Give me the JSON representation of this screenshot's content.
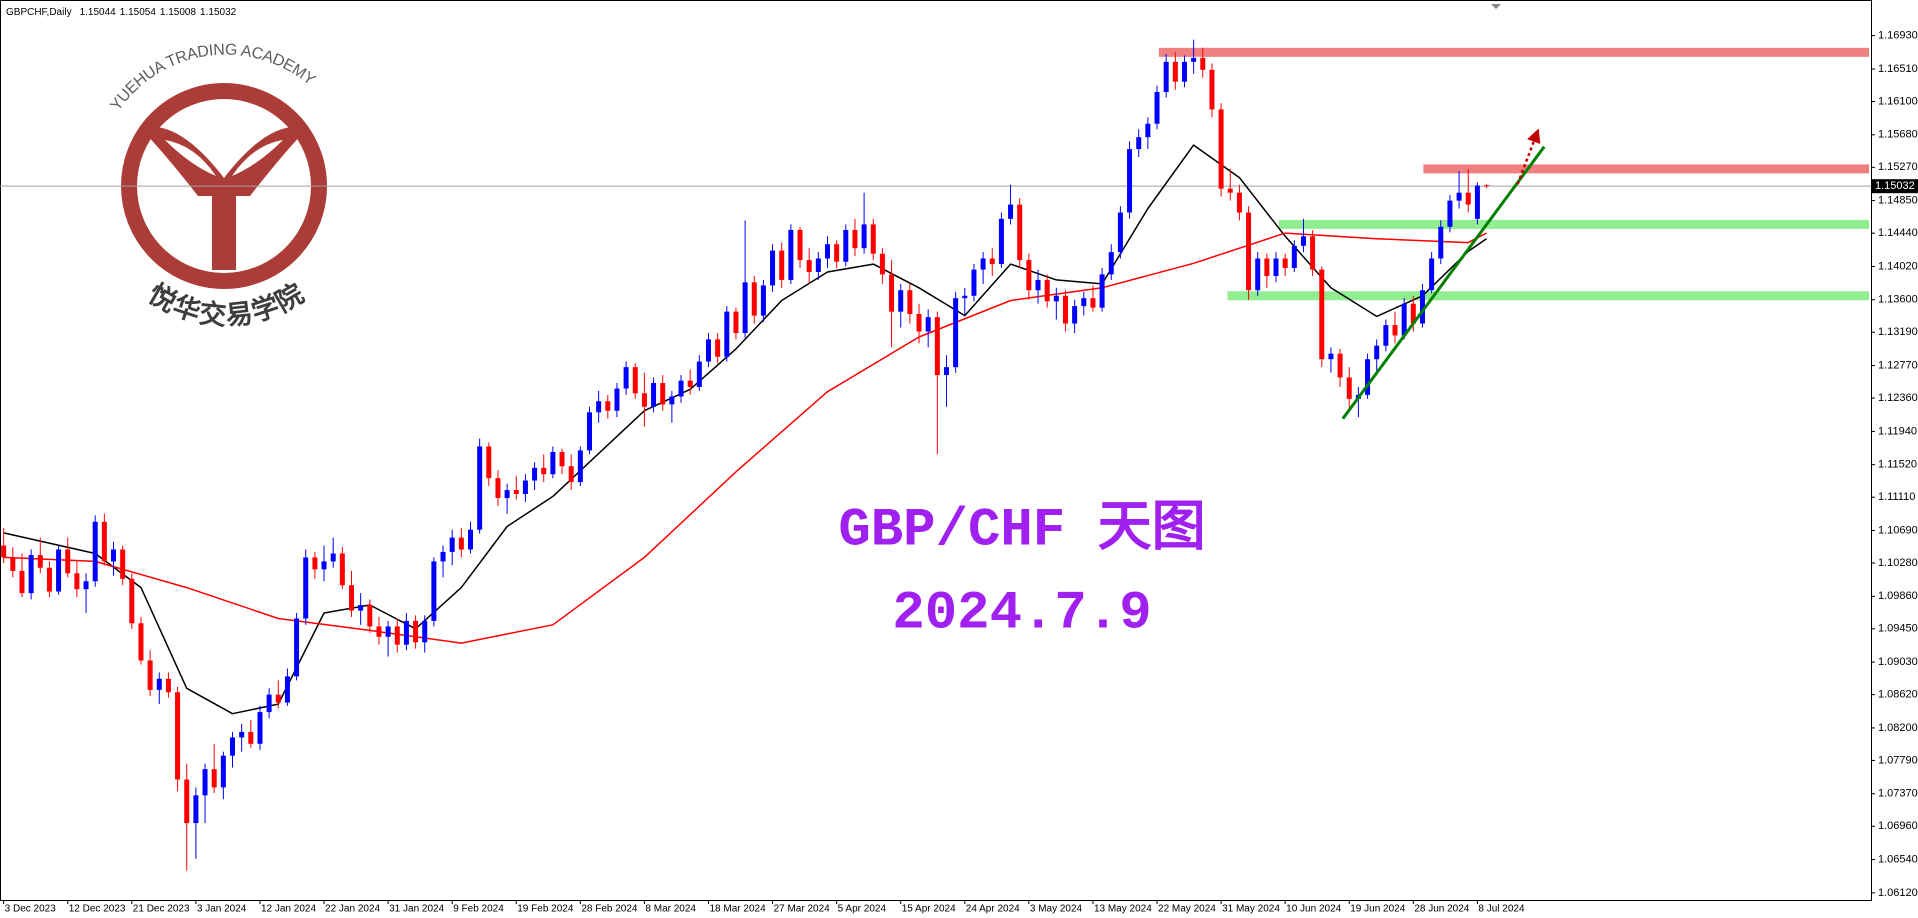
{
  "chart_data": {
    "type": "candlestick",
    "symbol": "GBPCHF,Daily",
    "title": "GBP/CHF 天图",
    "subtitle": "2024.7.9",
    "watermark": {
      "title": "YUEHUA TRADING ACADEMY",
      "subtitle": "悦华交易学院"
    },
    "up_color": "#0000ff",
    "down_color": "#ff0000",
    "xlim": [
      -0.4,
      204
    ],
    "ylim": [
      1.0603,
      1.1738
    ],
    "yticks": [
      {
        "value": 1.1693,
        "label": "1.16930"
      },
      {
        "value": 1.1651,
        "label": "1.16510"
      },
      {
        "value": 1.161,
        "label": "1.16100"
      },
      {
        "value": 1.1568,
        "label": "1.15680"
      },
      {
        "value": 1.1527,
        "label": "1.15270"
      },
      {
        "value": 1.1485,
        "label": "1.14850"
      },
      {
        "value": 1.1444,
        "label": "1.14440"
      },
      {
        "value": 1.1402,
        "label": "1.14020"
      },
      {
        "value": 1.136,
        "label": "1.13600"
      },
      {
        "value": 1.1319,
        "label": "1.13190"
      },
      {
        "value": 1.1277,
        "label": "1.12770"
      },
      {
        "value": 1.1236,
        "label": "1.12360"
      },
      {
        "value": 1.1194,
        "label": "1.11940"
      },
      {
        "value": 1.1152,
        "label": "1.11520"
      },
      {
        "value": 1.1111,
        "label": "1.11110"
      },
      {
        "value": 1.1069,
        "label": "1.10690"
      },
      {
        "value": 1.1028,
        "label": "1.10280"
      },
      {
        "value": 1.0986,
        "label": "1.09860"
      },
      {
        "value": 1.0945,
        "label": "1.09450"
      },
      {
        "value": 1.0903,
        "label": "1.09030"
      },
      {
        "value": 1.0862,
        "label": "1.08620"
      },
      {
        "value": 1.082,
        "label": "1.08200"
      },
      {
        "value": 1.0779,
        "label": "1.07790"
      },
      {
        "value": 1.0737,
        "label": "1.07370"
      },
      {
        "value": 1.0696,
        "label": "1.06960"
      },
      {
        "value": 1.0654,
        "label": "1.06540"
      },
      {
        "value": 1.0612,
        "label": "1.06120"
      }
    ],
    "xticks": [
      {
        "value": 0,
        "label": "3 Dec 2023"
      },
      {
        "value": 7,
        "label": "12 Dec 2023"
      },
      {
        "value": 14,
        "label": "21 Dec 2023"
      },
      {
        "value": 21,
        "label": "3 Jan 2024"
      },
      {
        "value": 28,
        "label": "12 Jan 2024"
      },
      {
        "value": 35,
        "label": "22 Jan 2024"
      },
      {
        "value": 42,
        "label": "31 Jan 2024"
      },
      {
        "value": 49,
        "label": "9 Feb 2024"
      },
      {
        "value": 56,
        "label": "19 Feb 2024"
      },
      {
        "value": 63,
        "label": "28 Feb 2024"
      },
      {
        "value": 70,
        "label": "8 Mar 2024"
      },
      {
        "value": 77,
        "label": "18 Mar 2024"
      },
      {
        "value": 84,
        "label": "27 Mar 2024"
      },
      {
        "value": 91,
        "label": "5 Apr 2024"
      },
      {
        "value": 98,
        "label": "15 Apr 2024"
      },
      {
        "value": 105,
        "label": "24 Apr 2024"
      },
      {
        "value": 112,
        "label": "3 May 2024"
      },
      {
        "value": 119,
        "label": "13 May 2024"
      },
      {
        "value": 126,
        "label": "22 May 2024"
      },
      {
        "value": 133,
        "label": "31 May 2024"
      },
      {
        "value": 140,
        "label": "10 Jun 2024"
      },
      {
        "value": 147,
        "label": "19 Jun 2024"
      },
      {
        "value": 154,
        "label": "28 Jun 2024"
      },
      {
        "value": 161,
        "label": "8 Jul 2024"
      }
    ],
    "candles": [
      [
        1.105,
        1.1072,
        1.1028,
        1.1035
      ],
      [
        1.1035,
        1.1048,
        1.101,
        1.1018
      ],
      [
        1.1018,
        1.104,
        1.0985,
        1.099
      ],
      [
        1.099,
        1.1045,
        1.0982,
        1.1038
      ],
      [
        1.1038,
        1.106,
        1.1015,
        1.1022
      ],
      [
        1.1022,
        1.103,
        1.0985,
        1.0992
      ],
      [
        1.0992,
        1.105,
        1.0988,
        1.1045
      ],
      [
        1.1045,
        1.106,
        1.101,
        1.1015
      ],
      [
        1.1015,
        1.103,
        1.0985,
        1.0995
      ],
      [
        1.0995,
        1.1015,
        1.0965,
        1.1005
      ],
      [
        1.1005,
        1.1088,
        1.0998,
        1.108
      ],
      [
        1.108,
        1.109,
        1.1025,
        1.103
      ],
      [
        1.103,
        1.1055,
        1.1012,
        1.1045
      ],
      [
        1.1045,
        1.105,
        1.1,
        1.1008
      ],
      [
        1.1008,
        1.1015,
        1.0945,
        1.0952
      ],
      [
        1.0952,
        1.096,
        1.09,
        1.0905
      ],
      [
        1.0905,
        1.0918,
        1.086,
        1.0868
      ],
      [
        1.0868,
        1.089,
        1.085,
        1.0882
      ],
      [
        1.0882,
        1.089,
        1.0858,
        1.0865
      ],
      [
        1.0865,
        1.0872,
        1.074,
        1.0755
      ],
      [
        1.0755,
        1.0775,
        1.064,
        1.07
      ],
      [
        1.07,
        1.0745,
        1.0655,
        1.0735
      ],
      [
        1.0735,
        1.0775,
        1.07,
        1.0768
      ],
      [
        1.0768,
        1.08,
        1.0738,
        1.0745
      ],
      [
        1.0745,
        1.079,
        1.073,
        1.0785
      ],
      [
        1.0785,
        1.0815,
        1.077,
        1.0808
      ],
      [
        1.0808,
        1.0825,
        1.079,
        1.0815
      ],
      [
        1.0815,
        1.083,
        1.0795,
        1.08
      ],
      [
        1.08,
        1.0848,
        1.0792,
        1.084
      ],
      [
        1.084,
        1.087,
        1.0832,
        1.0862
      ],
      [
        1.0862,
        1.088,
        1.0845,
        1.0852
      ],
      [
        1.0852,
        1.0895,
        1.0848,
        1.0885
      ],
      [
        1.0885,
        1.0965,
        1.088,
        1.0958
      ],
      [
        1.0958,
        1.1045,
        1.095,
        1.1035
      ],
      [
        1.1035,
        1.1042,
        1.1008,
        1.102
      ],
      [
        1.102,
        1.105,
        1.1005,
        1.103
      ],
      [
        1.103,
        1.106,
        1.1022,
        1.104
      ],
      [
        1.104,
        1.1048,
        1.0995,
        1.1
      ],
      [
        1.1,
        1.1018,
        1.096,
        1.0968
      ],
      [
        1.0968,
        1.099,
        1.095,
        1.0975
      ],
      [
        1.0975,
        1.0982,
        1.094,
        1.0948
      ],
      [
        1.0948,
        1.096,
        1.0925,
        1.0935
      ],
      [
        1.0935,
        1.0955,
        1.091,
        1.0948
      ],
      [
        1.0948,
        1.0958,
        1.0915,
        1.0925
      ],
      [
        1.0925,
        1.0965,
        1.0918,
        1.0955
      ],
      [
        1.0955,
        1.0962,
        1.092,
        1.0928
      ],
      [
        1.0928,
        1.0962,
        1.0915,
        1.0955
      ],
      [
        1.0955,
        1.1035,
        1.0948,
        1.103
      ],
      [
        1.103,
        1.105,
        1.101,
        1.1042
      ],
      [
        1.1042,
        1.107,
        1.1025,
        1.106
      ],
      [
        1.106,
        1.1072,
        1.1035,
        1.1045
      ],
      [
        1.1045,
        1.108,
        1.104,
        1.107
      ],
      [
        1.107,
        1.1185,
        1.1065,
        1.1175
      ],
      [
        1.1175,
        1.118,
        1.1125,
        1.1135
      ],
      [
        1.1135,
        1.1145,
        1.11,
        1.111
      ],
      [
        1.111,
        1.1128,
        1.109,
        1.112
      ],
      [
        1.112,
        1.1138,
        1.1108,
        1.1115
      ],
      [
        1.1115,
        1.114,
        1.1105,
        1.1132
      ],
      [
        1.1132,
        1.1155,
        1.112,
        1.1148
      ],
      [
        1.1148,
        1.1165,
        1.113,
        1.114
      ],
      [
        1.114,
        1.1175,
        1.1135,
        1.1168
      ],
      [
        1.1168,
        1.1172,
        1.114,
        1.115
      ],
      [
        1.115,
        1.1165,
        1.112,
        1.113
      ],
      [
        1.113,
        1.1175,
        1.1125,
        1.117
      ],
      [
        1.117,
        1.1225,
        1.1165,
        1.1218
      ],
      [
        1.1218,
        1.1245,
        1.1205,
        1.1232
      ],
      [
        1.1232,
        1.124,
        1.121,
        1.122
      ],
      [
        1.122,
        1.1255,
        1.1212,
        1.1248
      ],
      [
        1.1248,
        1.1282,
        1.124,
        1.1275
      ],
      [
        1.1275,
        1.128,
        1.1235,
        1.1242
      ],
      [
        1.1242,
        1.1268,
        1.12,
        1.1225
      ],
      [
        1.1225,
        1.1262,
        1.1218,
        1.1255
      ],
      [
        1.1255,
        1.1265,
        1.122,
        1.1228
      ],
      [
        1.1228,
        1.1245,
        1.1205,
        1.1238
      ],
      [
        1.1238,
        1.1265,
        1.123,
        1.1258
      ],
      [
        1.1258,
        1.1272,
        1.124,
        1.125
      ],
      [
        1.125,
        1.129,
        1.1245,
        1.1282
      ],
      [
        1.1282,
        1.1318,
        1.1275,
        1.131
      ],
      [
        1.131,
        1.1318,
        1.128,
        1.1288
      ],
      [
        1.1288,
        1.1352,
        1.1282,
        1.1345
      ],
      [
        1.1345,
        1.135,
        1.131,
        1.1318
      ],
      [
        1.1318,
        1.146,
        1.1312,
        1.1382
      ],
      [
        1.1382,
        1.139,
        1.133,
        1.134
      ],
      [
        1.134,
        1.1385,
        1.1332,
        1.1378
      ],
      [
        1.1378,
        1.143,
        1.137,
        1.1422
      ],
      [
        1.1422,
        1.1432,
        1.1375,
        1.1385
      ],
      [
        1.1385,
        1.1455,
        1.138,
        1.1448
      ],
      [
        1.1448,
        1.1452,
        1.14,
        1.141
      ],
      [
        1.141,
        1.1425,
        1.138,
        1.1395
      ],
      [
        1.1395,
        1.142,
        1.1385,
        1.1412
      ],
      [
        1.1412,
        1.144,
        1.14,
        1.143
      ],
      [
        1.143,
        1.1435,
        1.14,
        1.1408
      ],
      [
        1.1408,
        1.1455,
        1.1402,
        1.1448
      ],
      [
        1.1448,
        1.1462,
        1.1415,
        1.1425
      ],
      [
        1.1425,
        1.1495,
        1.1418,
        1.1455
      ],
      [
        1.1455,
        1.1462,
        1.141,
        1.1418
      ],
      [
        1.1418,
        1.1425,
        1.138,
        1.1392
      ],
      [
        1.1392,
        1.141,
        1.13,
        1.1345
      ],
      [
        1.1345,
        1.138,
        1.1325,
        1.1372
      ],
      [
        1.1372,
        1.138,
        1.133,
        1.1342
      ],
      [
        1.1342,
        1.1355,
        1.1305,
        1.132
      ],
      [
        1.132,
        1.1348,
        1.13,
        1.1338
      ],
      [
        1.1338,
        1.1345,
        1.1165,
        1.1265
      ],
      [
        1.1265,
        1.129,
        1.1225,
        1.1275
      ],
      [
        1.1275,
        1.137,
        1.1268,
        1.1362
      ],
      [
        1.1362,
        1.1375,
        1.134,
        1.1365
      ],
      [
        1.1365,
        1.1405,
        1.1358,
        1.1398
      ],
      [
        1.1398,
        1.142,
        1.138,
        1.1412
      ],
      [
        1.1412,
        1.1425,
        1.139,
        1.1405
      ],
      [
        1.1405,
        1.147,
        1.14,
        1.1462
      ],
      [
        1.1462,
        1.1505,
        1.1455,
        1.148
      ],
      [
        1.148,
        1.1488,
        1.14,
        1.141
      ],
      [
        1.141,
        1.1418,
        1.136,
        1.1372
      ],
      [
        1.1372,
        1.1398,
        1.1355,
        1.1385
      ],
      [
        1.1385,
        1.1392,
        1.135,
        1.1358
      ],
      [
        1.1358,
        1.1375,
        1.1335,
        1.1365
      ],
      [
        1.1365,
        1.1372,
        1.132,
        1.133
      ],
      [
        1.133,
        1.136,
        1.1318,
        1.1352
      ],
      [
        1.1352,
        1.137,
        1.134,
        1.1362
      ],
      [
        1.1362,
        1.1378,
        1.1345,
        1.135
      ],
      [
        1.135,
        1.14,
        1.1345,
        1.1392
      ],
      [
        1.1392,
        1.143,
        1.1385,
        1.142
      ],
      [
        1.142,
        1.1478,
        1.1412,
        1.147
      ],
      [
        1.147,
        1.156,
        1.1462,
        1.155
      ],
      [
        1.155,
        1.1575,
        1.154,
        1.1565
      ],
      [
        1.1565,
        1.159,
        1.155,
        1.1582
      ],
      [
        1.1582,
        1.163,
        1.1575,
        1.1622
      ],
      [
        1.1622,
        1.167,
        1.1615,
        1.166
      ],
      [
        1.166,
        1.1672,
        1.1625,
        1.1635
      ],
      [
        1.1635,
        1.1668,
        1.1628,
        1.166
      ],
      [
        1.166,
        1.1688,
        1.1645,
        1.1665
      ],
      [
        1.1665,
        1.1678,
        1.164,
        1.165
      ],
      [
        1.165,
        1.1658,
        1.159,
        1.16
      ],
      [
        1.16,
        1.1608,
        1.149,
        1.15
      ],
      [
        1.15,
        1.1525,
        1.1485,
        1.1495
      ],
      [
        1.1495,
        1.1505,
        1.146,
        1.147
      ],
      [
        1.147,
        1.1478,
        1.136,
        1.1372
      ],
      [
        1.1372,
        1.142,
        1.1365,
        1.1412
      ],
      [
        1.1412,
        1.1418,
        1.1375,
        1.139
      ],
      [
        1.139,
        1.142,
        1.1382,
        1.1412
      ],
      [
        1.1412,
        1.1418,
        1.139,
        1.14
      ],
      [
        1.14,
        1.1435,
        1.1395,
        1.1428
      ],
      [
        1.1428,
        1.1462,
        1.142,
        1.144
      ],
      [
        1.144,
        1.1448,
        1.139,
        1.1398
      ],
      [
        1.1398,
        1.1402,
        1.1275,
        1.1285
      ],
      [
        1.1285,
        1.13,
        1.1268,
        1.1292
      ],
      [
        1.1292,
        1.1298,
        1.125,
        1.1262
      ],
      [
        1.1262,
        1.1275,
        1.122,
        1.1235
      ],
      [
        1.1235,
        1.125,
        1.1212,
        1.124
      ],
      [
        1.124,
        1.1292,
        1.1235,
        1.1285
      ],
      [
        1.1285,
        1.131,
        1.127,
        1.1302
      ],
      [
        1.1302,
        1.1335,
        1.1295,
        1.1328
      ],
      [
        1.1328,
        1.1345,
        1.1305,
        1.1315
      ],
      [
        1.1315,
        1.1362,
        1.131,
        1.1355
      ],
      [
        1.1355,
        1.1365,
        1.132,
        1.133
      ],
      [
        1.133,
        1.138,
        1.1325,
        1.1372
      ],
      [
        1.1372,
        1.142,
        1.1368,
        1.1412
      ],
      [
        1.1412,
        1.146,
        1.1405,
        1.1452
      ],
      [
        1.1452,
        1.1492,
        1.1445,
        1.1485
      ],
      [
        1.1485,
        1.1522,
        1.1475,
        1.1495
      ],
      [
        1.1495,
        1.1525,
        1.147,
        1.148
      ],
      [
        1.1462,
        1.1508,
        1.1455,
        1.1504
      ],
      [
        1.15044,
        1.15054,
        1.15008,
        1.15032
      ]
    ],
    "series": [
      {
        "color": "#000000",
        "x": [
          0,
          10,
          15,
          20,
          25,
          30,
          35,
          40,
          45,
          50,
          55,
          60,
          65,
          70,
          75,
          80,
          85,
          90,
          95,
          100,
          105,
          110,
          115,
          120,
          125,
          130,
          135,
          140,
          145,
          150,
          155,
          160,
          162
        ],
        "values": [
          1.1066,
          1.104,
          1.0997,
          1.087,
          1.0838,
          1.085,
          1.0965,
          1.0975,
          1.0945,
          1.0997,
          1.1074,
          1.1112,
          1.1166,
          1.122,
          1.1247,
          1.1298,
          1.1359,
          1.1395,
          1.1405,
          1.1375,
          1.134,
          1.1405,
          1.1385,
          1.138,
          1.1475,
          1.1555,
          1.1514,
          1.144,
          1.1375,
          1.1339,
          1.1365,
          1.1421,
          1.1437
        ]
      },
      {
        "color": "#ff0000",
        "x": [
          0,
          10,
          20,
          30,
          40,
          50,
          60,
          70,
          80,
          90,
          100,
          110,
          120,
          130,
          140,
          150,
          160,
          162
        ],
        "values": [
          1.1035,
          1.103,
          1.0997,
          1.0958,
          1.0943,
          1.0927,
          1.095,
          1.1035,
          1.1143,
          1.1244,
          1.1313,
          1.1359,
          1.1375,
          1.1406,
          1.1444,
          1.1437,
          1.1432,
          1.1444
        ]
      }
    ],
    "zones": [
      {
        "y": 1.1672,
        "x0": 126.2,
        "color": "#f08080"
      },
      {
        "y": 1.1525,
        "x0": 155.1,
        "color": "#f08080"
      },
      {
        "y": 1.1455,
        "x0": 139.3,
        "color": "#90ee90"
      },
      {
        "y": 1.1365,
        "x0": 133.7,
        "color": "#90ee90"
      }
    ],
    "trendline": {
      "color": "#008000",
      "x": [
        146.3,
        168.3
      ],
      "values": [
        1.121,
        1.1553
      ]
    },
    "arrow": {
      "color": "#c00000",
      "x": [
        165.4,
        167.7
      ],
      "values": [
        1.1506,
        1.1576
      ]
    }
  }
}
